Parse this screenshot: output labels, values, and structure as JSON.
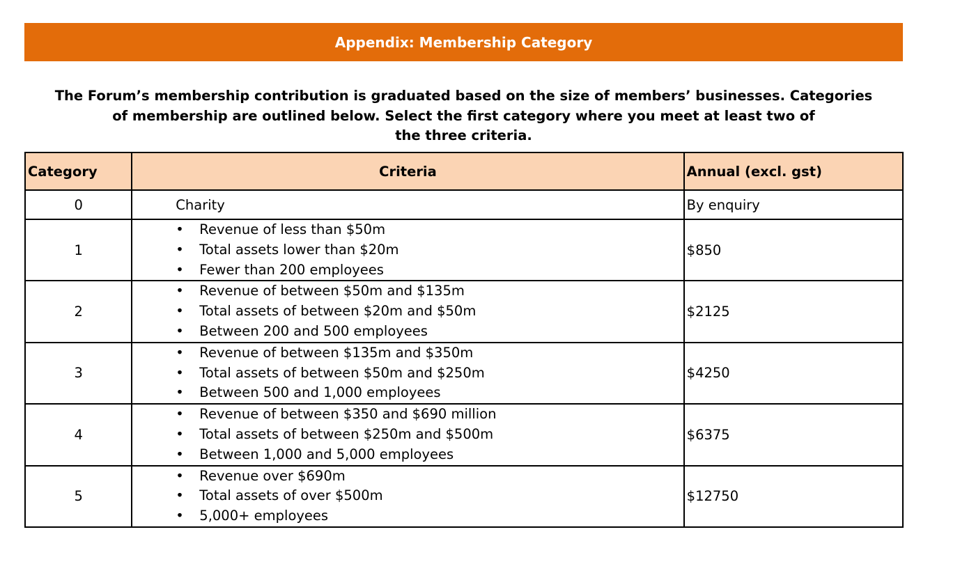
{
  "title": "Appendix: Membership Category",
  "intro_lines": [
    "The Forum’s membership contribution is graduated based on the size of members’ businesses. Categories",
    "of membership are outlined below. Select the first category where you meet at least two of",
    "the three criteria."
  ],
  "table": {
    "headers": [
      "Category",
      "Criteria",
      "Annual (excl. gst)"
    ],
    "rows": [
      {
        "category": "0",
        "criteria": [
          "Charity"
        ],
        "annual": "By enquiry"
      },
      {
        "category": "1",
        "criteria": [
          "Revenue of less than $50m",
          "Total assets lower than $20m",
          "Fewer than 200 employees"
        ],
        "annual": "$850"
      },
      {
        "category": "2",
        "criteria": [
          "Revenue of between $50m and $135m",
          "Total assets of between $20m and $50m",
          "Between 200 and 500 employees"
        ],
        "annual": "$2125"
      },
      {
        "category": "3",
        "criteria": [
          "Revenue of between $135m and $350m",
          "Total assets of between $50m and $250m",
          "Between 500 and 1,000 employees"
        ],
        "annual": "$4250"
      },
      {
        "category": "4",
        "criteria": [
          "Revenue of between $350 and $690 million",
          "Total assets of between $250m and $500m",
          "Between 1,000 and 5,000 employees"
        ],
        "annual": "$6375"
      },
      {
        "category": "5",
        "criteria": [
          "Revenue over $690m",
          "Total assets of over $500m",
          "5,000+ employees"
        ],
        "annual": "$12750"
      }
    ]
  },
  "colors": {
    "banner": "#E36C0A",
    "header_fill": "#FBD4B4"
  }
}
